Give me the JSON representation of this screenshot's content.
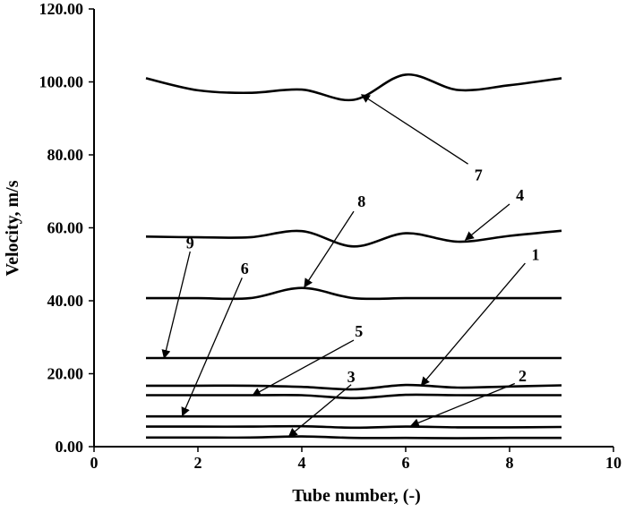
{
  "chart_data": {
    "type": "line",
    "title": "",
    "xlabel": "Tube number, (-)",
    "ylabel": "Velocity, m/s",
    "xlim": [
      0,
      10
    ],
    "ylim": [
      0,
      120
    ],
    "xticks": [
      0,
      2,
      4,
      6,
      8,
      10
    ],
    "yticks": [
      0,
      20,
      40,
      60,
      80,
      100,
      120
    ],
    "xtick_labels": [
      "0",
      "2",
      "4",
      "6",
      "8",
      "10"
    ],
    "ytick_labels": [
      "0.00",
      "20.00",
      "40.00",
      "60.00",
      "80.00",
      "100.00",
      "120.00"
    ],
    "grid": false,
    "legend": "none",
    "line_color": "#000000",
    "series": [
      {
        "name": "1",
        "x": [
          1,
          2,
          3,
          4,
          5,
          6,
          7,
          8,
          9
        ],
        "y": [
          16.7,
          16.7,
          16.7,
          16.4,
          15.7,
          16.9,
          16.2,
          16.5,
          16.8
        ]
      },
      {
        "name": "2",
        "x": [
          1,
          2,
          3,
          4,
          5,
          6,
          7,
          8,
          9
        ],
        "y": [
          5.5,
          5.5,
          5.5,
          5.6,
          5.2,
          5.5,
          5.3,
          5.3,
          5.4
        ]
      },
      {
        "name": "3",
        "x": [
          1,
          2,
          3,
          4,
          5,
          6,
          7,
          8,
          9
        ],
        "y": [
          2.5,
          2.5,
          2.5,
          2.8,
          2.4,
          2.4,
          2.3,
          2.4,
          2.4
        ]
      },
      {
        "name": "4",
        "x": [
          1,
          2,
          3,
          4,
          5,
          6,
          7,
          8,
          9
        ],
        "y": [
          57.6,
          57.4,
          57.4,
          59.1,
          54.9,
          58.5,
          56.2,
          57.8,
          59.2
        ]
      },
      {
        "name": "5",
        "x": [
          1,
          2,
          3,
          4,
          5,
          6,
          7,
          8,
          9
        ],
        "y": [
          14.1,
          14.1,
          14.1,
          14.1,
          13.3,
          14.2,
          14.1,
          14.1,
          14.1
        ]
      },
      {
        "name": "6",
        "x": [
          1,
          9
        ],
        "y": [
          8.3,
          8.3
        ]
      },
      {
        "name": "7",
        "x": [
          1,
          2,
          3,
          4,
          5,
          6,
          7,
          8,
          9
        ],
        "y": [
          101,
          97.7,
          97,
          97.9,
          95.1,
          102,
          97.8,
          99.1,
          101
        ]
      },
      {
        "name": "8",
        "x": [
          1,
          2,
          3,
          4,
          5,
          6,
          7,
          8,
          9
        ],
        "y": [
          40.7,
          40.7,
          40.7,
          43.5,
          40.7,
          40.7,
          40.7,
          40.7,
          40.7
        ]
      },
      {
        "name": "9",
        "x": [
          1,
          9
        ],
        "y": [
          24.3,
          24.3
        ]
      }
    ],
    "annotations": [
      {
        "text": "7",
        "label_at": [
          7.4,
          74.5
        ],
        "arrow_from": [
          7.2,
          77.5
        ],
        "arrow_to": [
          5.15,
          96.5
        ]
      },
      {
        "text": "4",
        "label_at": [
          8.2,
          69
        ],
        "arrow_from": [
          8.0,
          66.5
        ],
        "arrow_to": [
          7.15,
          56.7
        ]
      },
      {
        "text": "8",
        "label_at": [
          5.15,
          67.3
        ],
        "arrow_from": [
          5.0,
          64.5
        ],
        "arrow_to": [
          4.05,
          43.8
        ]
      },
      {
        "text": "9",
        "label_at": [
          1.85,
          55.8
        ],
        "arrow_from": [
          1.85,
          53.5
        ],
        "arrow_to": [
          1.35,
          24.3
        ]
      },
      {
        "text": "6",
        "label_at": [
          2.9,
          48.8
        ],
        "arrow_from": [
          2.85,
          46.3
        ],
        "arrow_to": [
          1.7,
          8.5
        ]
      },
      {
        "text": "1",
        "label_at": [
          8.5,
          52.6
        ],
        "arrow_from": [
          8.3,
          50.3
        ],
        "arrow_to": [
          6.3,
          16.8
        ]
      },
      {
        "text": "5",
        "label_at": [
          5.1,
          31.7
        ],
        "arrow_from": [
          5.0,
          29.2
        ],
        "arrow_to": [
          3.05,
          14.0
        ]
      },
      {
        "text": "2",
        "label_at": [
          8.25,
          19.4
        ],
        "arrow_from": [
          8.1,
          17.3
        ],
        "arrow_to": [
          6.1,
          5.7
        ]
      },
      {
        "text": "3",
        "label_at": [
          4.95,
          19.1
        ],
        "arrow_from": [
          4.95,
          17.0
        ],
        "arrow_to": [
          3.75,
          2.8
        ]
      }
    ]
  }
}
